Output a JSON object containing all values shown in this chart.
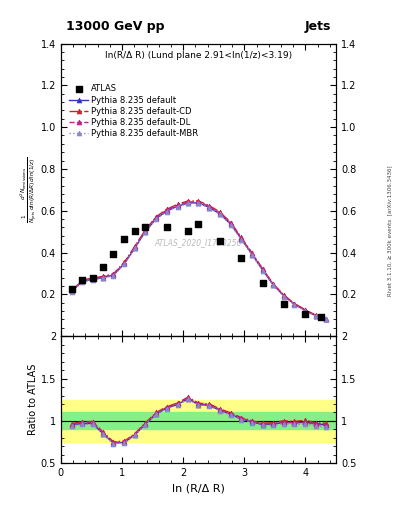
{
  "title_left": "13000 GeV pp",
  "title_right": "Jets",
  "inner_title": "ln(R/Δ R) (Lund plane 2.91<ln(1/z)<3.19)",
  "watermark": "ATLAS_2020_I1790256",
  "ylabel_main": "$\\frac{1}{N_{\\mathrm{jets}}}\\frac{d^2 N_{\\mathrm{emissions}}}{d\\ln(R/\\Delta R)\\,d\\ln(1/z)}$",
  "ylabel_ratio": "Ratio to ATLAS",
  "xlabel": "ln (R/Δ R)",
  "right_label": "Rivet 3.1.10, ≥ 300k events",
  "arxiv_label": "[arXiv:1306.3436]",
  "x_atlas": [
    0.18,
    0.35,
    0.52,
    0.69,
    0.86,
    1.04,
    1.21,
    1.38,
    1.73,
    2.08,
    2.25,
    2.6,
    2.95,
    3.3,
    3.65,
    4.0,
    4.25
  ],
  "y_atlas": [
    0.225,
    0.27,
    0.28,
    0.33,
    0.395,
    0.465,
    0.505,
    0.52,
    0.52,
    0.505,
    0.535,
    0.455,
    0.375,
    0.255,
    0.155,
    0.105,
    0.09
  ],
  "x_pythia": [
    0.18,
    0.35,
    0.52,
    0.69,
    0.86,
    1.04,
    1.21,
    1.38,
    1.56,
    1.73,
    1.91,
    2.08,
    2.25,
    2.43,
    2.6,
    2.78,
    2.95,
    3.13,
    3.3,
    3.47,
    3.65,
    3.82,
    4.0,
    4.17,
    4.34
  ],
  "y_default": [
    0.215,
    0.262,
    0.272,
    0.28,
    0.292,
    0.348,
    0.422,
    0.5,
    0.563,
    0.598,
    0.622,
    0.637,
    0.638,
    0.615,
    0.585,
    0.535,
    0.465,
    0.39,
    0.316,
    0.247,
    0.192,
    0.153,
    0.123,
    0.098,
    0.082
  ],
  "y_cd": [
    0.218,
    0.268,
    0.278,
    0.286,
    0.298,
    0.355,
    0.43,
    0.508,
    0.572,
    0.607,
    0.631,
    0.647,
    0.647,
    0.624,
    0.594,
    0.543,
    0.473,
    0.397,
    0.322,
    0.251,
    0.196,
    0.156,
    0.126,
    0.1,
    0.084
  ],
  "y_dl": [
    0.216,
    0.265,
    0.275,
    0.283,
    0.295,
    0.352,
    0.426,
    0.504,
    0.568,
    0.603,
    0.627,
    0.642,
    0.643,
    0.62,
    0.59,
    0.539,
    0.469,
    0.393,
    0.319,
    0.248,
    0.193,
    0.153,
    0.123,
    0.098,
    0.082
  ],
  "y_mbr": [
    0.213,
    0.259,
    0.269,
    0.278,
    0.289,
    0.346,
    0.42,
    0.498,
    0.561,
    0.596,
    0.62,
    0.635,
    0.636,
    0.613,
    0.583,
    0.532,
    0.462,
    0.387,
    0.313,
    0.244,
    0.189,
    0.15,
    0.12,
    0.096,
    0.08
  ],
  "ratio_default": [
    0.955,
    0.97,
    0.971,
    0.848,
    0.738,
    0.748,
    0.836,
    0.962,
    1.082,
    1.15,
    1.196,
    1.261,
    1.193,
    1.183,
    1.125,
    1.078,
    1.022,
    0.987,
    0.957,
    0.964,
    0.982,
    0.98,
    0.983,
    0.973,
    0.948
  ],
  "ratio_cd": [
    0.969,
    0.993,
    0.993,
    0.867,
    0.754,
    0.763,
    0.851,
    0.977,
    1.1,
    1.167,
    1.213,
    1.281,
    1.21,
    1.2,
    1.142,
    1.095,
    1.039,
    1.002,
    0.972,
    0.98,
    1.003,
    0.994,
    1.008,
    0.98,
    0.97
  ],
  "ratio_dl": [
    0.96,
    0.983,
    0.982,
    0.858,
    0.745,
    0.757,
    0.843,
    0.969,
    1.092,
    1.159,
    1.206,
    1.27,
    1.202,
    1.192,
    1.134,
    1.086,
    1.031,
    0.994,
    0.965,
    0.968,
    0.988,
    0.979,
    0.984,
    0.96,
    0.948
  ],
  "ratio_mbr": [
    0.946,
    0.959,
    0.961,
    0.843,
    0.731,
    0.744,
    0.831,
    0.958,
    1.079,
    1.146,
    1.192,
    1.257,
    1.189,
    1.178,
    1.12,
    1.072,
    1.016,
    0.98,
    0.952,
    0.951,
    0.969,
    0.961,
    0.96,
    0.941,
    0.926
  ],
  "green_band_lo": 0.9,
  "green_band_hi": 1.1,
  "yellow_band_lo": 0.75,
  "yellow_band_hi": 1.25,
  "color_default": "#3333BB",
  "color_cd": "#CC2222",
  "color_dl": "#BB2288",
  "color_mbr": "#8888CC",
  "main_ylim": [
    0.0,
    1.4
  ],
  "ratio_ylim": [
    0.5,
    2.0
  ],
  "xlim": [
    0.0,
    4.5
  ],
  "main_yticks": [
    0.2,
    0.4,
    0.6,
    0.8,
    1.0,
    1.2,
    1.4
  ],
  "ratio_yticks": [
    0.5,
    1.0,
    1.5,
    2.0
  ],
  "xticks": [
    0,
    1,
    2,
    3,
    4
  ]
}
